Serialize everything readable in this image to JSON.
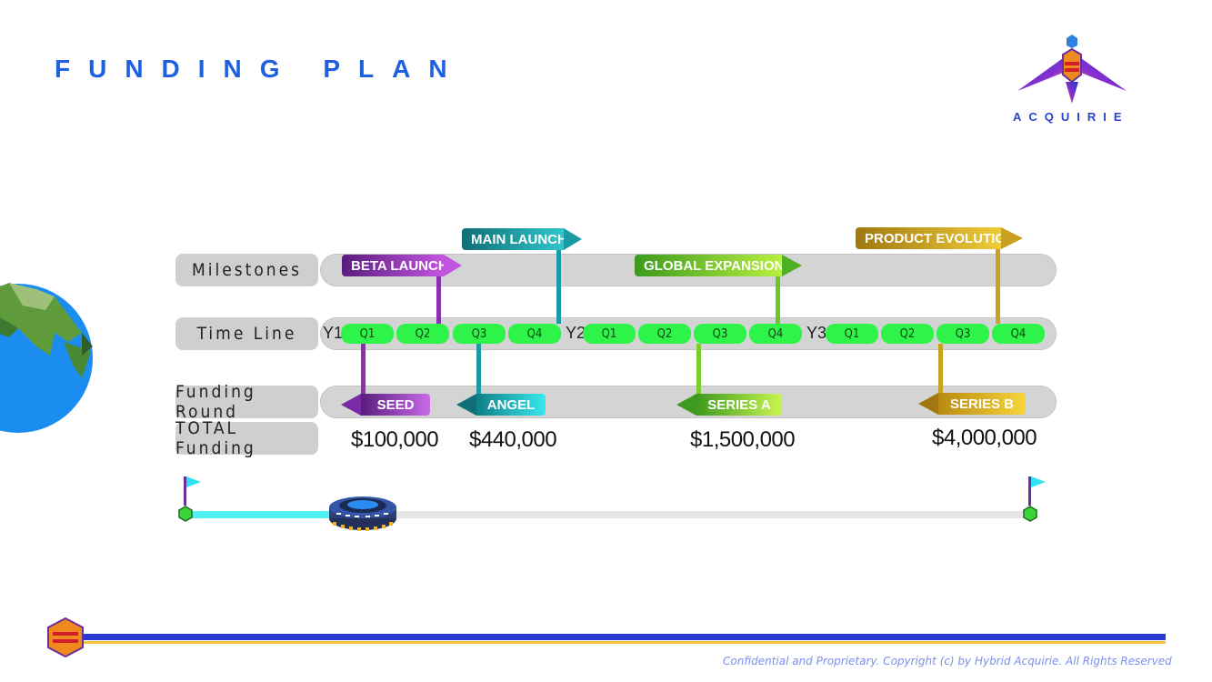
{
  "title": "FUNDING PLAN",
  "brand": {
    "name": "ACQUIRIE"
  },
  "rows": {
    "milestones": "Milestones",
    "timeline": "Time Line",
    "funding_round": "Funding Round",
    "total_funding": "TOTAL Funding"
  },
  "years": [
    "Y1",
    "Y2",
    "Y3"
  ],
  "quarters": [
    "Q1",
    "Q2",
    "Q3",
    "Q4"
  ],
  "milestones": [
    {
      "label": "BETA LAUNCH",
      "color": "#8e2fb5"
    },
    {
      "label": "MAIN LAUNCH",
      "color": "#1a9aa2"
    },
    {
      "label": "GLOBAL EXPANSION",
      "color": "#6fc52a"
    },
    {
      "label": "PRODUCT EVOLUTION",
      "color": "#c9a120"
    }
  ],
  "rounds": [
    {
      "label": "SEED",
      "amount": "$100,000",
      "color": "#9b39c8"
    },
    {
      "label": "ANGEL",
      "amount": "$440,000",
      "color": "#1aaab0"
    },
    {
      "label": "SERIES A",
      "amount": "$1,500,000",
      "color": "#7ccc2a"
    },
    {
      "label": "SERIES B",
      "amount": "$4,000,000",
      "color": "#e0b51d"
    }
  ],
  "footer": "Confidential and Proprietary. Copyright (c) by Hybrid Acquirie. All Rights Reserved",
  "colors": {
    "title": "#1f5fe0",
    "quarter": "#2ef44a",
    "progress": "#4ff2f2",
    "bar_blue": "#2b3bd1",
    "bar_gold": "#f5c23a"
  },
  "progress": {
    "fraction": 0.21
  }
}
